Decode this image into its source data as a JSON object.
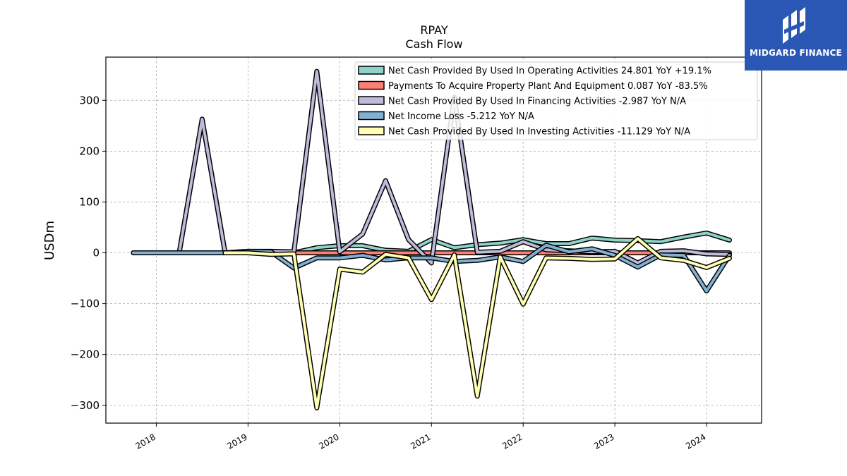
{
  "logo": {
    "text": "MIDGARD FINANCE",
    "icon": "midgard-logo-icon",
    "background": "#2a57b3"
  },
  "chart_data": {
    "type": "line",
    "title": "RPAY",
    "subtitle": "Cash Flow",
    "xlabel": "",
    "ylabel": "USDm",
    "xlim": [
      2017.45,
      2024.6
    ],
    "ylim": [
      -335,
      385
    ],
    "yticks": [
      -300,
      -200,
      -100,
      0,
      100,
      200,
      300
    ],
    "xticks": [
      2018,
      2019,
      2020,
      2021,
      2022,
      2023,
      2024
    ],
    "grid": true,
    "legend_position": "top-right",
    "series": [
      {
        "name": "Net Cash Provided By Used In Operating Activities  24.801 YoY +19.1%",
        "color": "#8dd3c7",
        "points": [
          [
            2019.5,
            0
          ],
          [
            2019.75,
            10
          ],
          [
            2020.0,
            14
          ],
          [
            2020.25,
            14
          ],
          [
            2020.5,
            5
          ],
          [
            2020.75,
            3
          ],
          [
            2021.0,
            26
          ],
          [
            2021.25,
            10
          ],
          [
            2021.5,
            16
          ],
          [
            2021.75,
            19
          ],
          [
            2022.0,
            26
          ],
          [
            2022.25,
            18
          ],
          [
            2022.5,
            18
          ],
          [
            2022.75,
            29
          ],
          [
            2023.0,
            25
          ],
          [
            2023.25,
            24
          ],
          [
            2023.5,
            22
          ],
          [
            2023.75,
            31
          ],
          [
            2024.0,
            39
          ],
          [
            2024.25,
            25
          ]
        ]
      },
      {
        "name": "Payments To Acquire Property Plant And Equipment  0.087 YoY -83.5%",
        "color": "#fb8072",
        "points": [
          [
            2019.5,
            0
          ],
          [
            2019.75,
            0
          ],
          [
            2020.0,
            0
          ],
          [
            2020.25,
            0
          ],
          [
            2020.5,
            0
          ],
          [
            2020.75,
            0
          ],
          [
            2021.0,
            0
          ],
          [
            2021.25,
            0
          ],
          [
            2021.5,
            0
          ],
          [
            2021.75,
            0
          ],
          [
            2022.0,
            0
          ],
          [
            2022.25,
            0
          ],
          [
            2022.5,
            0
          ],
          [
            2022.75,
            0
          ],
          [
            2023.0,
            0
          ],
          [
            2023.25,
            0
          ],
          [
            2023.5,
            0
          ],
          [
            2023.75,
            0
          ],
          [
            2024.0,
            0
          ],
          [
            2024.25,
            0
          ]
        ]
      },
      {
        "name": "Net Cash Provided By Used In Financing Activities  -2.987 YoY N/A",
        "color": "#bebada",
        "points": [
          [
            2017.75,
            0
          ],
          [
            2018.0,
            0
          ],
          [
            2018.25,
            0
          ],
          [
            2018.5,
            263
          ],
          [
            2018.75,
            0
          ],
          [
            2019.0,
            3
          ],
          [
            2019.25,
            3
          ],
          [
            2019.5,
            2
          ],
          [
            2019.75,
            357
          ],
          [
            2020.0,
            2
          ],
          [
            2020.25,
            37
          ],
          [
            2020.5,
            142
          ],
          [
            2020.75,
            26
          ],
          [
            2021.0,
            -20
          ],
          [
            2021.25,
            306
          ],
          [
            2021.5,
            1
          ],
          [
            2021.75,
            3
          ],
          [
            2022.0,
            22
          ],
          [
            2022.25,
            6
          ],
          [
            2022.5,
            4
          ],
          [
            2022.75,
            2
          ],
          [
            2023.0,
            3
          ],
          [
            2023.25,
            -20
          ],
          [
            2023.5,
            3
          ],
          [
            2023.75,
            4
          ],
          [
            2024.0,
            -2
          ],
          [
            2024.25,
            -3
          ]
        ]
      },
      {
        "name": "Net Income Loss  -5.212 YoY N/A",
        "color": "#80b1d3",
        "points": [
          [
            2017.75,
            0
          ],
          [
            2018.0,
            0
          ],
          [
            2018.25,
            0
          ],
          [
            2018.5,
            0
          ],
          [
            2018.75,
            0
          ],
          [
            2019.0,
            3
          ],
          [
            2019.25,
            2
          ],
          [
            2019.5,
            -30
          ],
          [
            2019.75,
            -10
          ],
          [
            2020.0,
            -10
          ],
          [
            2020.25,
            -5
          ],
          [
            2020.5,
            -14
          ],
          [
            2020.75,
            -10
          ],
          [
            2021.0,
            -10
          ],
          [
            2021.25,
            -17
          ],
          [
            2021.5,
            -15
          ],
          [
            2021.75,
            -8
          ],
          [
            2022.0,
            -17
          ],
          [
            2022.25,
            15
          ],
          [
            2022.5,
            2
          ],
          [
            2022.75,
            8
          ],
          [
            2023.0,
            -5
          ],
          [
            2023.25,
            -28
          ],
          [
            2023.5,
            -4
          ],
          [
            2023.75,
            -5
          ],
          [
            2024.0,
            -75
          ],
          [
            2024.25,
            -5
          ]
        ]
      },
      {
        "name": "Net Cash Provided By Used In Investing Activities  -11.129 YoY N/A",
        "color": "#ffffb3",
        "points": [
          [
            2018.75,
            0
          ],
          [
            2019.0,
            0
          ],
          [
            2019.25,
            -3
          ],
          [
            2019.5,
            -2
          ],
          [
            2019.75,
            -305
          ],
          [
            2020.0,
            -32
          ],
          [
            2020.25,
            -38
          ],
          [
            2020.5,
            -3
          ],
          [
            2020.75,
            -10
          ],
          [
            2021.0,
            -92
          ],
          [
            2021.25,
            -4
          ],
          [
            2021.5,
            -282
          ],
          [
            2021.75,
            -8
          ],
          [
            2022.0,
            -101
          ],
          [
            2022.25,
            -10
          ],
          [
            2022.5,
            -11
          ],
          [
            2022.75,
            -13
          ],
          [
            2023.0,
            -12
          ],
          [
            2023.25,
            28
          ],
          [
            2023.5,
            -10
          ],
          [
            2023.75,
            -15
          ],
          [
            2024.0,
            -29
          ],
          [
            2024.25,
            -11
          ]
        ]
      }
    ]
  }
}
